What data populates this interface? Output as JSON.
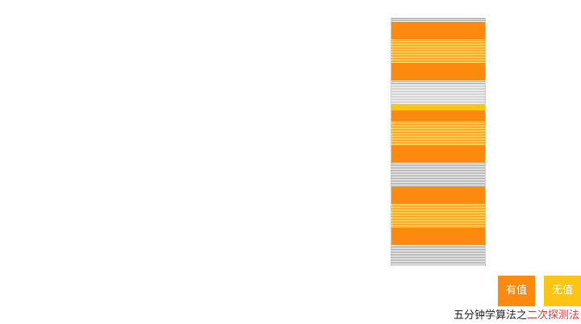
{
  "colors": {
    "filled": "#fb8a0f",
    "empty": "#fdc513",
    "gap": "#ffffff"
  },
  "hash_table": {
    "slot_count": 150,
    "empty_slots": [
      40,
      41,
      42,
      43,
      44,
      45,
      46,
      47,
      48,
      49,
      50,
      51,
      52,
      53,
      54,
      55
    ]
  },
  "legend": {
    "filled_label": "有值",
    "empty_label": "无值"
  },
  "caption": {
    "prefix": "五分钟学算法之",
    "highlight": "二次探测法"
  }
}
